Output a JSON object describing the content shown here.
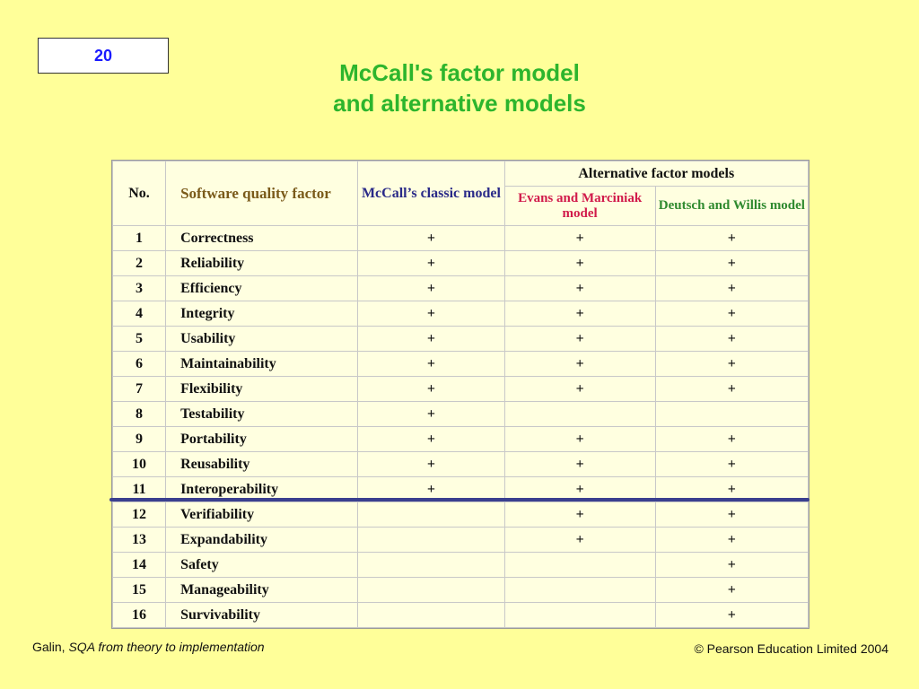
{
  "slide_number": "20",
  "title": {
    "line1": "McCall's factor model",
    "line2": "and alternative models"
  },
  "table": {
    "headers": {
      "no": "No.",
      "factor": "Software quality factor",
      "mccall": "McCall’s classic model",
      "alternative": "Alternative factor models",
      "evans": "Evans and Marciniak model",
      "deutsch": "Deutsch and Willis model"
    },
    "rows": [
      {
        "no": "1",
        "factor": "Correctness",
        "mccall": "+",
        "evans": "+",
        "deutsch": "+"
      },
      {
        "no": "2",
        "factor": "Reliability",
        "mccall": "+",
        "evans": "+",
        "deutsch": "+"
      },
      {
        "no": "3",
        "factor": "Efficiency",
        "mccall": "+",
        "evans": "+",
        "deutsch": "+"
      },
      {
        "no": "4",
        "factor": "Integrity",
        "mccall": "+",
        "evans": "+",
        "deutsch": "+"
      },
      {
        "no": "5",
        "factor": "Usability",
        "mccall": "+",
        "evans": "+",
        "deutsch": "+"
      },
      {
        "no": "6",
        "factor": "Maintainability",
        "mccall": "+",
        "evans": "+",
        "deutsch": "+"
      },
      {
        "no": "7",
        "factor": "Flexibility",
        "mccall": "+",
        "evans": "+",
        "deutsch": "+"
      },
      {
        "no": "8",
        "factor": "Testability",
        "mccall": "+",
        "evans": "",
        "deutsch": ""
      },
      {
        "no": "9",
        "factor": "Portability",
        "mccall": "+",
        "evans": "+",
        "deutsch": "+"
      },
      {
        "no": "10",
        "factor": "Reusability",
        "mccall": "+",
        "evans": "+",
        "deutsch": "+"
      },
      {
        "no": "11",
        "factor": "Interoperability",
        "mccall": "+",
        "evans": "+",
        "deutsch": "+"
      },
      {
        "no": "12",
        "factor": "Verifiability",
        "mccall": "",
        "evans": "+",
        "deutsch": "+"
      },
      {
        "no": "13",
        "factor": "Expandability",
        "mccall": "",
        "evans": "+",
        "deutsch": "+"
      },
      {
        "no": "14",
        "factor": "Safety",
        "mccall": "",
        "evans": "",
        "deutsch": "+"
      },
      {
        "no": "15",
        "factor": "Manageability",
        "mccall": "",
        "evans": "",
        "deutsch": "+"
      },
      {
        "no": "16",
        "factor": "Survivability",
        "mccall": "",
        "evans": "",
        "deutsch": "+"
      }
    ]
  },
  "footer": {
    "author": "Galin, ",
    "book": "SQA from theory to implementation",
    "copyright": "© Pearson Education Limited 2004"
  },
  "colors": {
    "background": "#ffff99",
    "title": "#2db52d",
    "slide_number": "#1a1aff",
    "divider": "#3a3f8f"
  }
}
